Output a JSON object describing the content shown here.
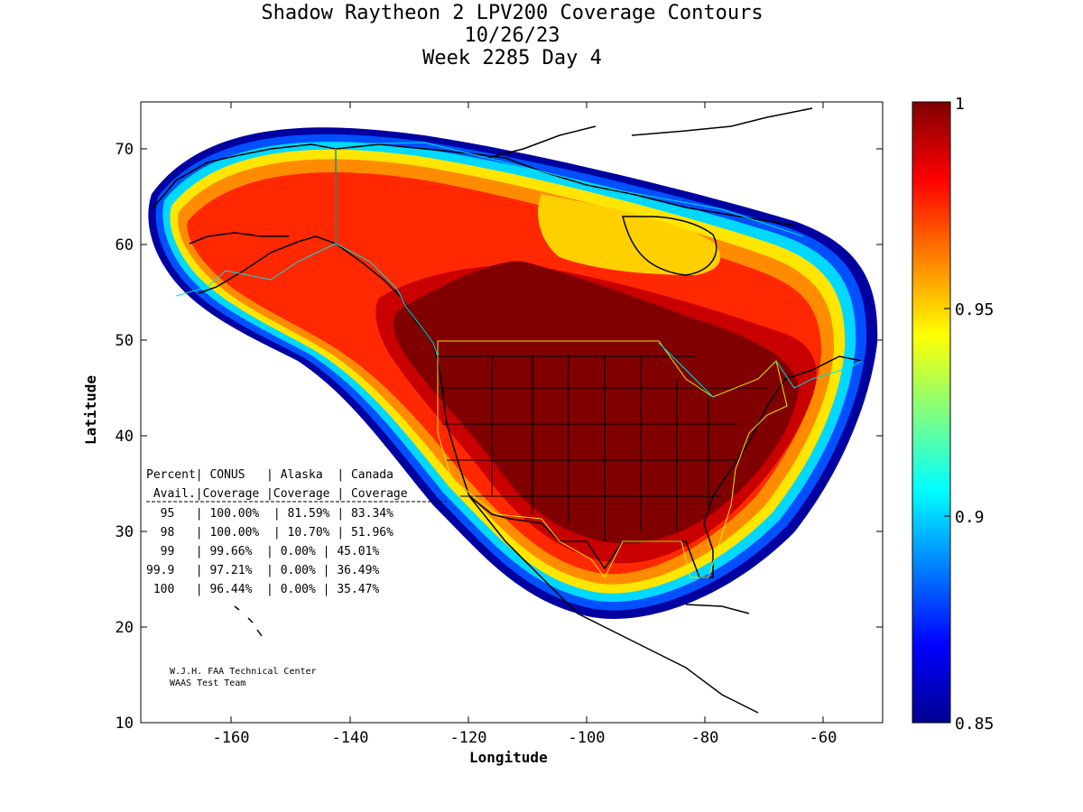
{
  "titles": {
    "line1": "Shadow Raytheon 2 LPV200 Coverage Contours",
    "line2": "10/26/23",
    "line3": "Week 2285 Day 4"
  },
  "axes": {
    "xlabel": "Longitude",
    "ylabel": "Latitude",
    "xticks": [
      "-160",
      "-140",
      "-120",
      "-100",
      "-80",
      "-60"
    ],
    "yticks": [
      "10",
      "20",
      "30",
      "40",
      "50",
      "60",
      "70"
    ]
  },
  "colorbar": {
    "ticks": [
      "1",
      "0.95",
      "0.9",
      "0.85"
    ],
    "colormap": "jet"
  },
  "stats_table": {
    "header1": "Percent| CONUS   | Alaska  | Canada",
    "header2": " Avail.|Coverage |Coverage | Coverage",
    "rows": [
      "  95   | 100.00%  | 81.59% | 83.34%",
      "  98   | 100.00%  | 10.70% | 51.96%",
      "  99   | 99.66%  | 0.00% | 45.01%",
      "99.9   | 97.21%  | 0.00% | 36.49%",
      " 100   | 96.44%  | 0.00% | 35.47%"
    ]
  },
  "credits": {
    "line1": "W.J.H. FAA Technical Center",
    "line2": "WAAS Test Team"
  },
  "colors": {
    "boundary_conus": "#e8e800",
    "boundary_alaska_canada": "#00e0e0",
    "coastline": "#000000"
  }
}
